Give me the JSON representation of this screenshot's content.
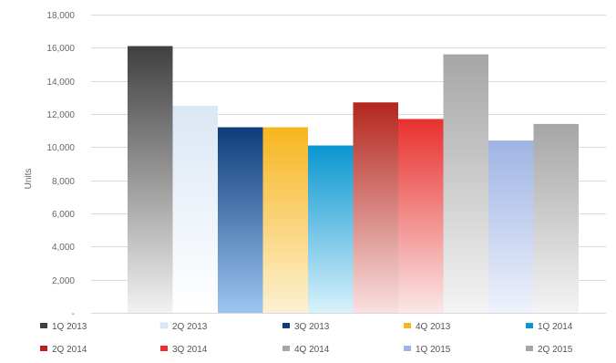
{
  "chart_data": {
    "type": "bar",
    "ylabel": "Units",
    "xlabel": "",
    "title": "",
    "ylim": [
      0,
      18000
    ],
    "y_ticks": [
      0,
      2000,
      4000,
      6000,
      8000,
      10000,
      12000,
      14000,
      16000,
      18000
    ],
    "y_tick_labels": [
      "-",
      "2,000",
      "4,000",
      "6,000",
      "8,000",
      "10,000",
      "12,000",
      "14,000",
      "16,000",
      "18,000"
    ],
    "grid": true,
    "legend_position": "bottom",
    "series": [
      {
        "name": "1Q 2013",
        "value": 16100,
        "color_top": "#404040",
        "color_bottom": "#f2f2f2"
      },
      {
        "name": "2Q 2013",
        "value": 12500,
        "color_top": "#dbe7f4",
        "color_bottom": "#ffffff"
      },
      {
        "name": "3Q 2013",
        "value": 11200,
        "color_top": "#0d3c78",
        "color_bottom": "#9cc6f2"
      },
      {
        "name": "4Q 2013",
        "value": 11200,
        "color_top": "#f7b51f",
        "color_bottom": "#fdf1d2"
      },
      {
        "name": "1Q 2014",
        "value": 10100,
        "color_top": "#0a96d1",
        "color_bottom": "#d9f2fb"
      },
      {
        "name": "2Q 2014",
        "value": 12700,
        "color_top": "#b3261e",
        "color_bottom": "#f9e0df"
      },
      {
        "name": "3Q 2014",
        "value": 11700,
        "color_top": "#e8302d",
        "color_bottom": "#fbe7e7"
      },
      {
        "name": "4Q 2014",
        "value": 15600,
        "color_top": "#a6a6a6",
        "color_bottom": "#f4f4f4"
      },
      {
        "name": "1Q 2015",
        "value": 10400,
        "color_top": "#9fb4e3",
        "color_bottom": "#eef2fb"
      },
      {
        "name": "2Q 2015",
        "value": 11400,
        "color_top": "#a6a6a6",
        "color_bottom": "#f4f4f4"
      }
    ]
  }
}
